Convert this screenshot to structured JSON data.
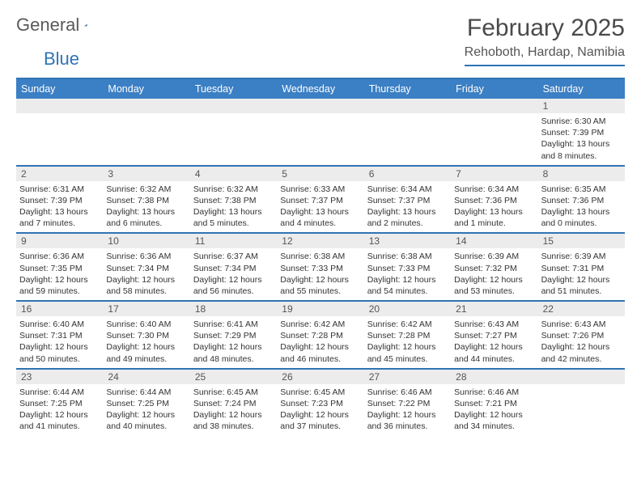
{
  "brand": {
    "part1": "General",
    "part2": "Blue"
  },
  "title": "February 2025",
  "location": "Rehoboth, Hardap, Namibia",
  "day_names": [
    "Sunday",
    "Monday",
    "Tuesday",
    "Wednesday",
    "Thursday",
    "Friday",
    "Saturday"
  ],
  "colors": {
    "accent": "#2f74b5",
    "header_bg": "#3b7fc4",
    "row_bg": "#ececec",
    "text": "#333333"
  },
  "layout": {
    "cols": 7,
    "rows": 5,
    "first_weekday_index": 6
  },
  "days": [
    {
      "n": 1,
      "sunrise": "6:30 AM",
      "sunset": "7:39 PM",
      "daylight": "13 hours and 8 minutes."
    },
    {
      "n": 2,
      "sunrise": "6:31 AM",
      "sunset": "7:39 PM",
      "daylight": "13 hours and 7 minutes."
    },
    {
      "n": 3,
      "sunrise": "6:32 AM",
      "sunset": "7:38 PM",
      "daylight": "13 hours and 6 minutes."
    },
    {
      "n": 4,
      "sunrise": "6:32 AM",
      "sunset": "7:38 PM",
      "daylight": "13 hours and 5 minutes."
    },
    {
      "n": 5,
      "sunrise": "6:33 AM",
      "sunset": "7:37 PM",
      "daylight": "13 hours and 4 minutes."
    },
    {
      "n": 6,
      "sunrise": "6:34 AM",
      "sunset": "7:37 PM",
      "daylight": "13 hours and 2 minutes."
    },
    {
      "n": 7,
      "sunrise": "6:34 AM",
      "sunset": "7:36 PM",
      "daylight": "13 hours and 1 minute."
    },
    {
      "n": 8,
      "sunrise": "6:35 AM",
      "sunset": "7:36 PM",
      "daylight": "13 hours and 0 minutes."
    },
    {
      "n": 9,
      "sunrise": "6:36 AM",
      "sunset": "7:35 PM",
      "daylight": "12 hours and 59 minutes."
    },
    {
      "n": 10,
      "sunrise": "6:36 AM",
      "sunset": "7:34 PM",
      "daylight": "12 hours and 58 minutes."
    },
    {
      "n": 11,
      "sunrise": "6:37 AM",
      "sunset": "7:34 PM",
      "daylight": "12 hours and 56 minutes."
    },
    {
      "n": 12,
      "sunrise": "6:38 AM",
      "sunset": "7:33 PM",
      "daylight": "12 hours and 55 minutes."
    },
    {
      "n": 13,
      "sunrise": "6:38 AM",
      "sunset": "7:33 PM",
      "daylight": "12 hours and 54 minutes."
    },
    {
      "n": 14,
      "sunrise": "6:39 AM",
      "sunset": "7:32 PM",
      "daylight": "12 hours and 53 minutes."
    },
    {
      "n": 15,
      "sunrise": "6:39 AM",
      "sunset": "7:31 PM",
      "daylight": "12 hours and 51 minutes."
    },
    {
      "n": 16,
      "sunrise": "6:40 AM",
      "sunset": "7:31 PM",
      "daylight": "12 hours and 50 minutes."
    },
    {
      "n": 17,
      "sunrise": "6:40 AM",
      "sunset": "7:30 PM",
      "daylight": "12 hours and 49 minutes."
    },
    {
      "n": 18,
      "sunrise": "6:41 AM",
      "sunset": "7:29 PM",
      "daylight": "12 hours and 48 minutes."
    },
    {
      "n": 19,
      "sunrise": "6:42 AM",
      "sunset": "7:28 PM",
      "daylight": "12 hours and 46 minutes."
    },
    {
      "n": 20,
      "sunrise": "6:42 AM",
      "sunset": "7:28 PM",
      "daylight": "12 hours and 45 minutes."
    },
    {
      "n": 21,
      "sunrise": "6:43 AM",
      "sunset": "7:27 PM",
      "daylight": "12 hours and 44 minutes."
    },
    {
      "n": 22,
      "sunrise": "6:43 AM",
      "sunset": "7:26 PM",
      "daylight": "12 hours and 42 minutes."
    },
    {
      "n": 23,
      "sunrise": "6:44 AM",
      "sunset": "7:25 PM",
      "daylight": "12 hours and 41 minutes."
    },
    {
      "n": 24,
      "sunrise": "6:44 AM",
      "sunset": "7:25 PM",
      "daylight": "12 hours and 40 minutes."
    },
    {
      "n": 25,
      "sunrise": "6:45 AM",
      "sunset": "7:24 PM",
      "daylight": "12 hours and 38 minutes."
    },
    {
      "n": 26,
      "sunrise": "6:45 AM",
      "sunset": "7:23 PM",
      "daylight": "12 hours and 37 minutes."
    },
    {
      "n": 27,
      "sunrise": "6:46 AM",
      "sunset": "7:22 PM",
      "daylight": "12 hours and 36 minutes."
    },
    {
      "n": 28,
      "sunrise": "6:46 AM",
      "sunset": "7:21 PM",
      "daylight": "12 hours and 34 minutes."
    }
  ],
  "labels": {
    "sunrise": "Sunrise:",
    "sunset": "Sunset:",
    "daylight": "Daylight:"
  }
}
